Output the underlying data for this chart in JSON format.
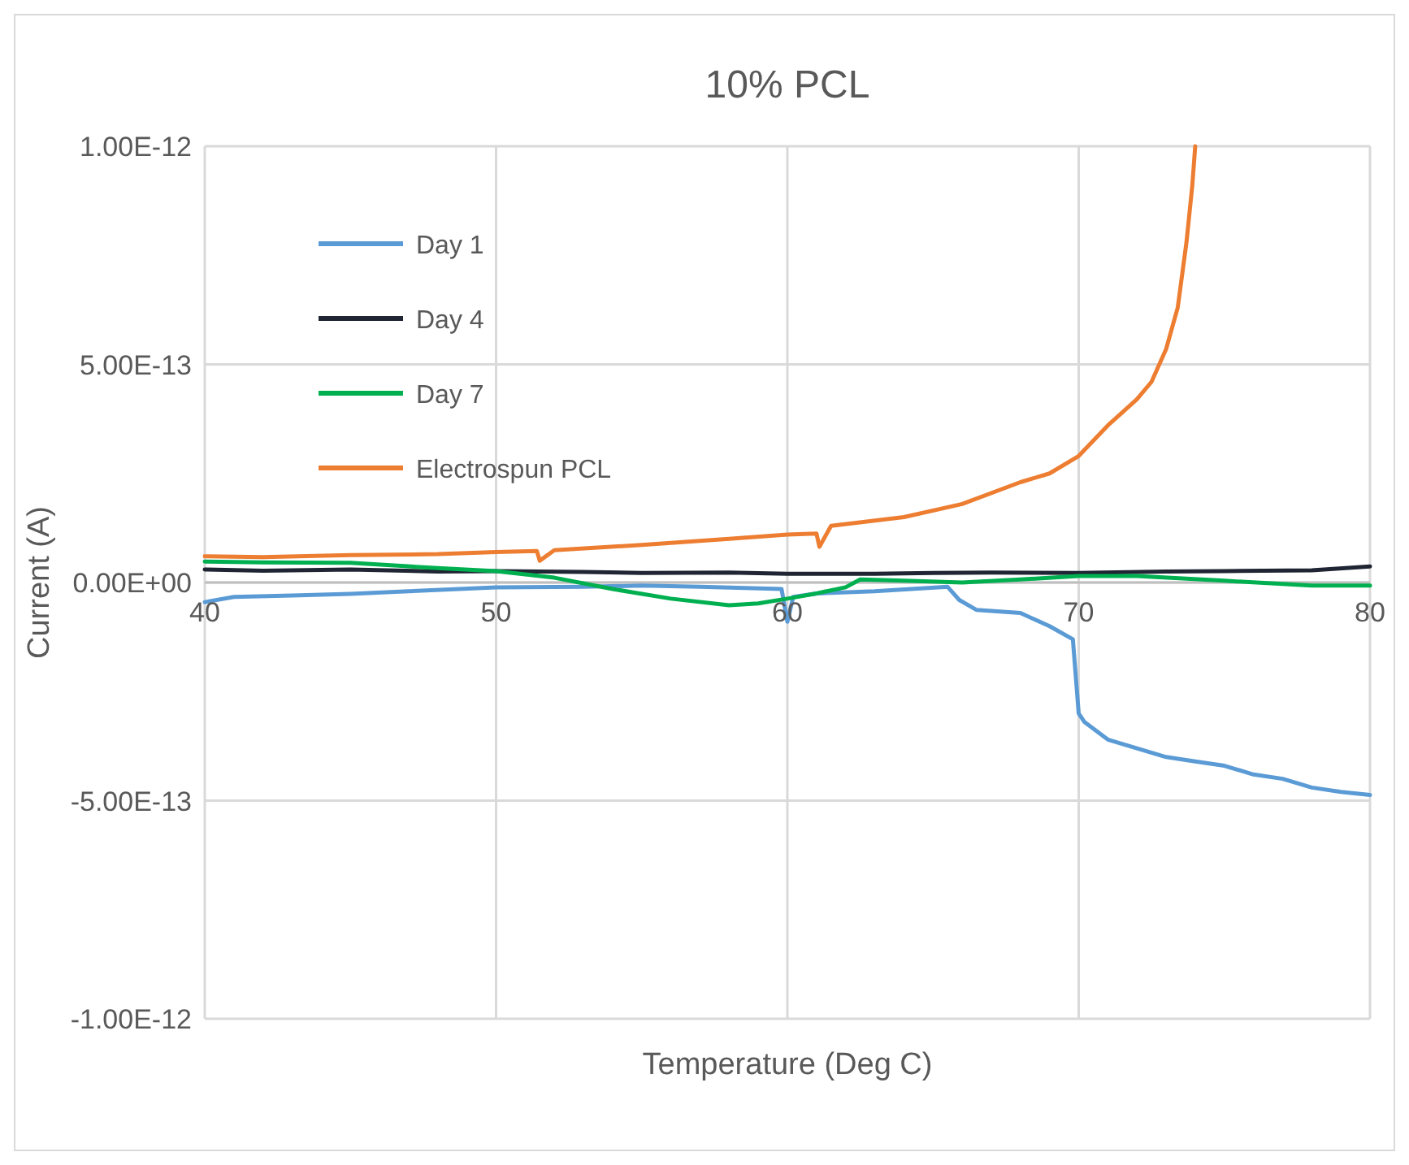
{
  "chart_data": {
    "type": "line",
    "title": "10% PCL",
    "xlabel": "Temperature (Deg C)",
    "ylabel": "Current (A)",
    "xlim": [
      40,
      80
    ],
    "xticks": [
      40,
      50,
      60,
      70,
      80
    ],
    "ylim": [
      -1e-12,
      1e-12
    ],
    "yticks": [
      {
        "value": -1e-12,
        "label": "-1.00E-12"
      },
      {
        "value": -5e-13,
        "label": "-5.00E-13"
      },
      {
        "value": 0,
        "label": "0.00E+00"
      },
      {
        "value": 5e-13,
        "label": "5.00E-13"
      },
      {
        "value": 1e-12,
        "label": "1.00E-12"
      }
    ],
    "grid": true,
    "legend": "top left",
    "marker": "none",
    "line_style": "solid",
    "series": [
      {
        "name": "Day 1",
        "color": "#5b9bd5",
        "x": [
          40,
          41,
          43,
          45,
          47,
          50,
          53,
          55,
          57,
          59.8,
          60,
          60.2,
          61,
          63,
          65.5,
          65.9,
          66.5,
          68,
          69,
          69.8,
          70,
          70.2,
          71,
          72,
          73,
          74,
          75,
          76,
          77,
          78,
          79,
          80
        ],
        "values": [
          -4.5e-14,
          -3.3e-14,
          -3e-14,
          -2.6e-14,
          -2e-14,
          -1.1e-14,
          -1e-14,
          -7e-15,
          -1e-14,
          -1.5e-14,
          -9e-14,
          -3.3e-14,
          -2.5e-14,
          -2e-14,
          -1e-14,
          -4e-14,
          -6.3e-14,
          -7e-14,
          -1e-13,
          -1.3e-13,
          -3e-13,
          -3.2e-13,
          -3.6e-13,
          -3.8e-13,
          -4e-13,
          -4.1e-13,
          -4.2e-13,
          -4.4e-13,
          -4.5e-13,
          -4.7e-13,
          -4.8e-13,
          -4.87e-13
        ]
      },
      {
        "name": "Day 4",
        "color": "#1f2533",
        "x": [
          40,
          42,
          45,
          48,
          50,
          53,
          55,
          58,
          60,
          63,
          65,
          67,
          70,
          73,
          75,
          78,
          80
        ],
        "values": [
          3e-14,
          2.7e-14,
          3e-14,
          2.5e-14,
          2.6e-14,
          2.4e-14,
          2.2e-14,
          2.3e-14,
          2e-14,
          2e-14,
          2.2e-14,
          2.3e-14,
          2.2e-14,
          2.5e-14,
          2.6e-14,
          2.8e-14,
          3.7e-14
        ]
      },
      {
        "name": "Day 7",
        "color": "#00b050",
        "x": [
          40,
          42,
          45,
          48,
          50,
          52,
          54,
          56,
          58,
          59,
          60,
          61,
          62,
          62.5,
          64,
          66,
          68,
          70,
          72,
          75,
          78,
          80
        ],
        "values": [
          4.8e-14,
          4.6e-14,
          4.5e-14,
          3.3e-14,
          2.6e-14,
          1.1e-14,
          -1.5e-14,
          -3.7e-14,
          -5.2e-14,
          -4.8e-14,
          -3.7e-14,
          -2.5e-14,
          -1.1e-14,
          7e-15,
          4e-15,
          0,
          7e-15,
          1.5e-14,
          1.5e-14,
          4e-15,
          -7e-15,
          -7e-15
        ]
      },
      {
        "name": "Electrospun PCL",
        "color": "#ed7d31",
        "x": [
          40,
          42,
          45,
          48,
          50,
          51.4,
          51.5,
          52,
          55,
          58,
          60,
          61,
          61.1,
          61.5,
          64,
          66,
          68,
          69,
          70,
          71,
          72,
          72.5,
          73,
          73.4,
          73.7,
          73.9,
          74
        ],
        "values": [
          6e-14,
          5.8e-14,
          6.3e-14,
          6.5e-14,
          7e-14,
          7.2e-14,
          5e-14,
          7.4e-14,
          8.6e-14,
          1e-13,
          1.1e-13,
          1.12e-13,
          8.2e-14,
          1.3e-13,
          1.5e-13,
          1.8e-13,
          2.3e-13,
          2.5e-13,
          2.9e-13,
          3.6e-13,
          4.2e-13,
          4.6e-13,
          5.35e-13,
          6.3e-13,
          7.8e-13,
          9.1e-13,
          1e-12
        ]
      }
    ]
  }
}
